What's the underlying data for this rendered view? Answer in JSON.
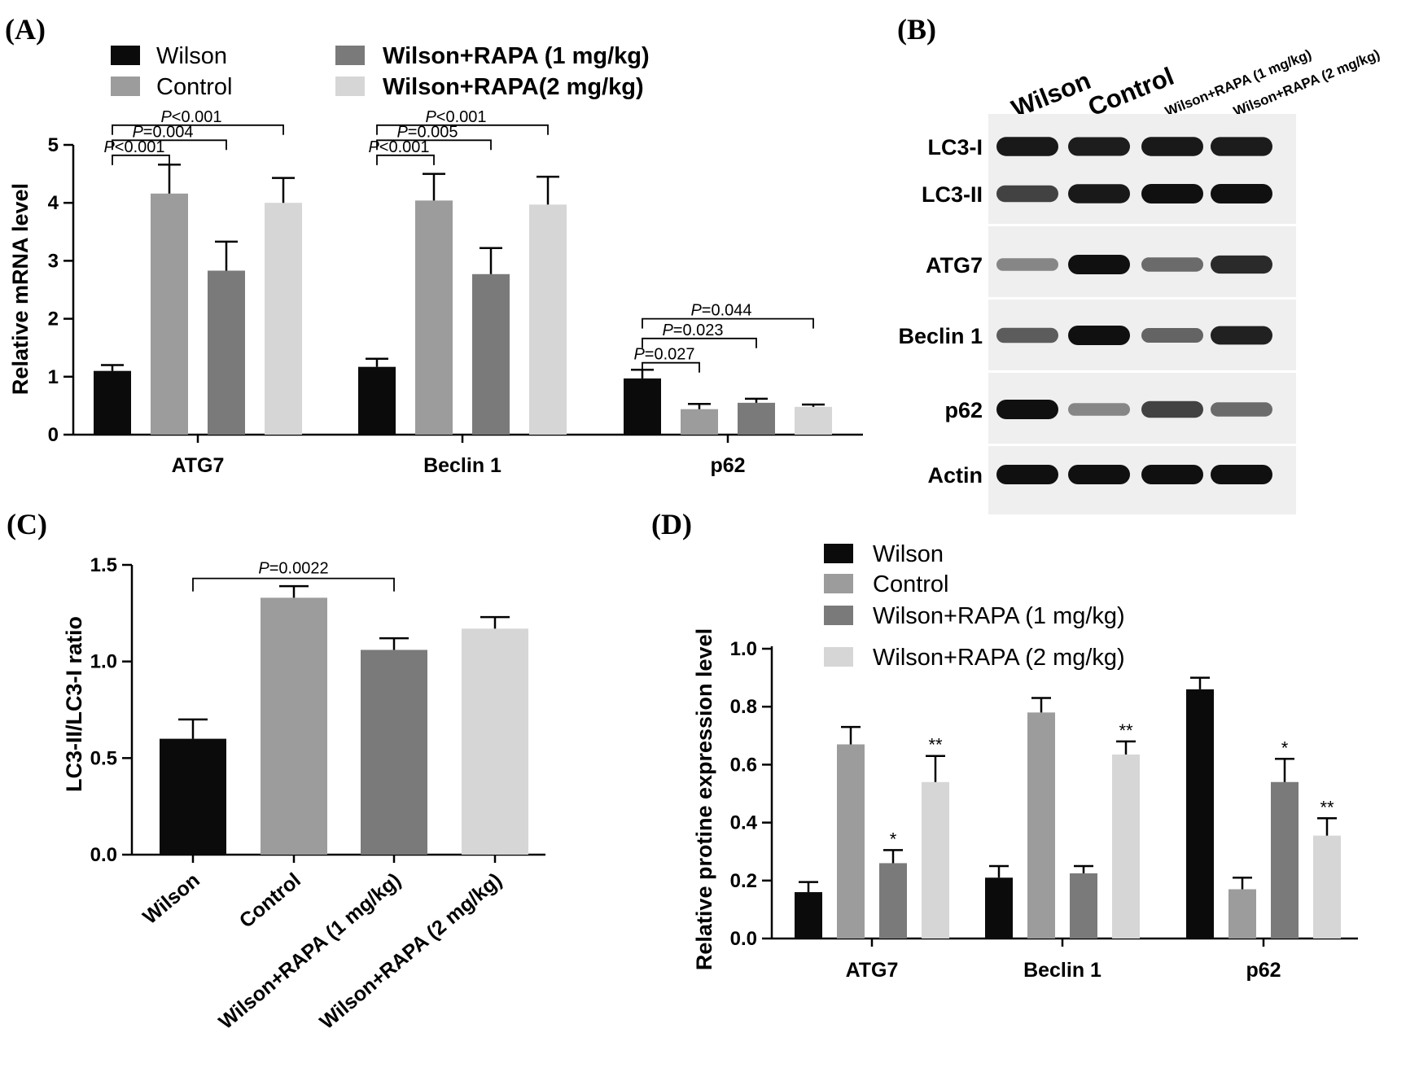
{
  "colors": {
    "c0": "#0b0b0b",
    "c1": "#9c9c9c",
    "c2": "#7a7a7a",
    "c3": "#d6d6d6"
  },
  "panel_labels": [
    "(A)",
    "(B)",
    "(C)",
    "(D)"
  ],
  "chart_data": [
    {
      "id": "A",
      "type": "bar",
      "ylabel": "Relative mRNA level",
      "ylim": [
        0,
        5
      ],
      "yticks": [
        "0",
        "1",
        "2",
        "3",
        "4",
        "5"
      ],
      "categories": [
        "ATG7",
        "Beclin 1",
        "p62"
      ],
      "legend": [
        "Wilson",
        "Control",
        "Wilson+RAPA (1 mg/kg)",
        "Wilson+RAPA(2 mg/kg)"
      ],
      "series": [
        {
          "name": "Wilson",
          "values": [
            1.1,
            1.17,
            0.97
          ],
          "errors": [
            0.1,
            0.14,
            0.15
          ]
        },
        {
          "name": "Control",
          "values": [
            4.16,
            4.04,
            0.44
          ],
          "errors": [
            0.5,
            0.46,
            0.09
          ]
        },
        {
          "name": "Wilson+RAPA (1 mg/kg)",
          "values": [
            2.83,
            2.77,
            0.55
          ],
          "errors": [
            0.5,
            0.45,
            0.07
          ]
        },
        {
          "name": "Wilson+RAPA(2 mg/kg)",
          "values": [
            4.0,
            3.97,
            0.48
          ],
          "errors": [
            0.43,
            0.48,
            0.04
          ]
        }
      ],
      "comparisons": [
        {
          "group": 0,
          "to": 1,
          "label": "<0.001",
          "y": 4.82
        },
        {
          "group": 0,
          "to": 2,
          "label": "=0.004",
          "y": 5.08
        },
        {
          "group": 0,
          "to": 3,
          "label": "<0.001",
          "y": 5.34
        },
        {
          "group": 1,
          "to": 1,
          "label": "<0.001",
          "y": 4.82
        },
        {
          "group": 1,
          "to": 2,
          "label": "=0.005",
          "y": 5.08
        },
        {
          "group": 1,
          "to": 3,
          "label": "<0.001",
          "y": 5.34
        },
        {
          "group": 2,
          "to": 1,
          "label": "=0.027",
          "y": 1.24
        },
        {
          "group": 2,
          "to": 2,
          "label": "=0.023",
          "y": 1.66
        },
        {
          "group": 2,
          "to": 3,
          "label": "=0.044",
          "y": 2.0
        }
      ]
    },
    {
      "id": "C",
      "type": "bar",
      "ylabel": "LC3-II/LC3-I ratio",
      "ylim": [
        0,
        1.5
      ],
      "yticks": [
        "0.0",
        "0.5",
        "1.0",
        "1.5"
      ],
      "categories": [
        "Wilson",
        "Control",
        "Wilson+RAPA (1 mg/kg)",
        "Wilson+RAPA (2 mg/kg)"
      ],
      "values": [
        0.6,
        1.33,
        1.06,
        1.17
      ],
      "errors": [
        0.1,
        0.06,
        0.06,
        0.06
      ],
      "comparisons": [
        {
          "from": 0,
          "to": 2,
          "label": "=0.0022",
          "y": 1.43
        }
      ]
    },
    {
      "id": "D",
      "type": "bar",
      "ylabel": "Relative  protine expression level",
      "ylim": [
        0,
        1.0
      ],
      "yticks": [
        "0.0",
        "0.2",
        "0.4",
        "0.6",
        "0.8",
        "1.0"
      ],
      "categories": [
        "ATG7",
        "Beclin 1",
        "p62"
      ],
      "legend": [
        "Wilson",
        "Control",
        "Wilson+RAPA (1 mg/kg)",
        "Wilson+RAPA (2 mg/kg)"
      ],
      "series": [
        {
          "name": "Wilson",
          "values": [
            0.16,
            0.21,
            0.86
          ],
          "errors": [
            0.035,
            0.04,
            0.04
          ]
        },
        {
          "name": "Control",
          "values": [
            0.67,
            0.78,
            0.17
          ],
          "errors": [
            0.06,
            0.05,
            0.04
          ]
        },
        {
          "name": "Wilson+RAPA (1 mg/kg)",
          "values": [
            0.26,
            0.225,
            0.54
          ],
          "errors": [
            0.045,
            0.025,
            0.08
          ]
        },
        {
          "name": "Wilson+RAPA (2 mg/kg)",
          "values": [
            0.54,
            0.635,
            0.355
          ],
          "errors": [
            0.09,
            0.045,
            0.06
          ]
        }
      ],
      "stars": [
        {
          "group": 0,
          "series": 2,
          "text": "*"
        },
        {
          "group": 0,
          "series": 3,
          "text": "**"
        },
        {
          "group": 1,
          "series": 3,
          "text": "**"
        },
        {
          "group": 2,
          "series": 2,
          "text": "*"
        },
        {
          "group": 2,
          "series": 3,
          "text": "**"
        }
      ]
    }
  ],
  "blot": {
    "lanes": [
      "Wilson",
      "Control",
      "Wilson+RAPA (1 mg/kg)",
      "Wilson+RAPA (2 mg/kg)"
    ],
    "rows": [
      {
        "label": "LC3-I",
        "intensity": [
          0.95,
          0.92,
          0.95,
          0.93
        ]
      },
      {
        "label": "LC3-II",
        "intensity": [
          0.7,
          0.95,
          1.0,
          1.0
        ]
      },
      {
        "label": "ATG7",
        "intensity": [
          0.3,
          1.0,
          0.45,
          0.85
        ]
      },
      {
        "label": "Beclin 1",
        "intensity": [
          0.55,
          1.0,
          0.5,
          0.9
        ]
      },
      {
        "label": "p62",
        "intensity": [
          1.0,
          0.3,
          0.7,
          0.45
        ]
      },
      {
        "label": "Actin",
        "intensity": [
          1.0,
          1.0,
          1.0,
          1.0
        ]
      }
    ]
  }
}
